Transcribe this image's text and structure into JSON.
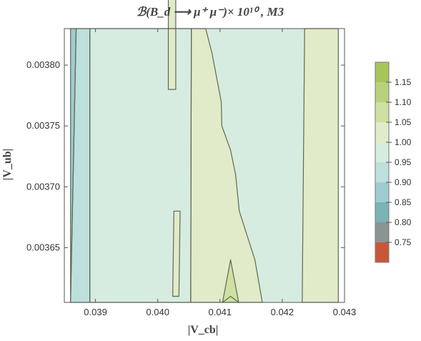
{
  "chart_data": {
    "type": "contour",
    "title": "ℬ(B_d ⟶ μ⁺ μ⁻)× 10¹⁰ , M3",
    "xlabel": "|V_cb|",
    "ylabel": "|V_ub|",
    "xlim": [
      0.0385,
      0.043
    ],
    "ylim": [
      0.003605,
      0.00383
    ],
    "x_ticks": [
      "0.039",
      "0.040",
      "0.041",
      "0.042",
      "0.043"
    ],
    "x_tick_values": [
      0.039,
      0.04,
      0.041,
      0.042,
      0.043
    ],
    "y_ticks": [
      "0.00365",
      "0.00370",
      "0.00375",
      "0.00380"
    ],
    "y_tick_values": [
      0.00365,
      0.0037,
      0.00375,
      0.0038
    ],
    "colorbar": {
      "min": 0.7,
      "max": 1.2,
      "ticks": [
        "0.75",
        "0.80",
        "0.85",
        "0.90",
        "0.95",
        "1.00",
        "1.05",
        "1.10",
        "1.15"
      ],
      "tick_values": [
        0.75,
        0.8,
        0.85,
        0.9,
        0.95,
        1.0,
        1.05,
        1.1,
        1.15
      ],
      "bands": [
        {
          "from": 0.7,
          "to": 0.75,
          "color": "#c8573a"
        },
        {
          "from": 0.75,
          "to": 0.8,
          "color": "#8b9493"
        },
        {
          "from": 0.8,
          "to": 0.85,
          "color": "#7bb3b6"
        },
        {
          "from": 0.85,
          "to": 0.9,
          "color": "#9fcccf"
        },
        {
          "from": 0.9,
          "to": 0.95,
          "color": "#bde0dc"
        },
        {
          "from": 0.95,
          "to": 1.0,
          "color": "#d6ece0"
        },
        {
          "from": 1.0,
          "to": 1.05,
          "color": "#e2ebc9"
        },
        {
          "from": 1.05,
          "to": 1.1,
          "color": "#cfe0a3"
        },
        {
          "from": 1.1,
          "to": 1.15,
          "color": "#b8d27c"
        },
        {
          "from": 1.15,
          "to": 1.2,
          "color": "#a7c65a"
        }
      ]
    },
    "regions": [
      {
        "level": "0.90-0.95",
        "color": "#bde0dc",
        "polygon": [
          [
            0.0386,
            0.003605
          ],
          [
            0.03891,
            0.003605
          ],
          [
            0.03891,
            0.00383
          ],
          [
            0.03869,
            0.00383
          ]
        ]
      },
      {
        "level": "0.85-0.90",
        "color": "#9fcccf",
        "polygon": [
          [
            0.0386,
            0.003605
          ],
          [
            0.0386,
            0.00383
          ],
          [
            0.03869,
            0.00383
          ]
        ]
      },
      {
        "level": "0.95-1.00",
        "color": "#d6ece0",
        "polygon": [
          [
            0.03891,
            0.003605
          ],
          [
            0.04053,
            0.003605
          ],
          [
            0.04054,
            0.00383
          ],
          [
            0.03891,
            0.00383
          ]
        ]
      },
      {
        "level": "1.00-1.05",
        "color": "#e2ebc9",
        "polygon": [
          [
            0.04053,
            0.003605
          ],
          [
            0.04104,
            0.003605
          ],
          [
            0.04117,
            0.00361
          ],
          [
            0.0413,
            0.003605
          ],
          [
            0.04168,
            0.003605
          ],
          [
            0.04156,
            0.00364
          ],
          [
            0.04131,
            0.00368
          ],
          [
            0.04125,
            0.00371
          ],
          [
            0.04117,
            0.00373
          ],
          [
            0.04103,
            0.00375
          ],
          [
            0.04102,
            0.00377
          ],
          [
            0.04087,
            0.00381
          ],
          [
            0.04077,
            0.00383
          ],
          [
            0.04054,
            0.00383
          ]
        ]
      },
      {
        "level": "1.00-1.05",
        "color": "#e2ebc9",
        "polygon": [
          [
            0.04232,
            0.003605
          ],
          [
            0.0429,
            0.003605
          ],
          [
            0.0429,
            0.00383
          ],
          [
            0.04236,
            0.00383
          ]
        ]
      },
      {
        "level": "1.00-1.05",
        "color": "#e2ebc9",
        "polygon": [
          [
            0.04024,
            0.00361
          ],
          [
            0.04034,
            0.00361
          ],
          [
            0.04036,
            0.00368
          ],
          [
            0.04026,
            0.00368
          ]
        ]
      },
      {
        "level": "1.00-1.05",
        "color": "#e2ebc9",
        "polygon": [
          [
            0.04017,
            0.00378
          ],
          [
            0.04029,
            0.00378
          ],
          [
            0.04029,
            0.0381
          ],
          [
            0.04019,
            0.0381
          ]
        ]
      },
      {
        "level": "1.05-1.10",
        "color": "#cfe0a3",
        "polygon": [
          [
            0.04104,
            0.003605
          ],
          [
            0.0413,
            0.003605
          ],
          [
            0.04117,
            0.00364
          ]
        ]
      }
    ]
  }
}
